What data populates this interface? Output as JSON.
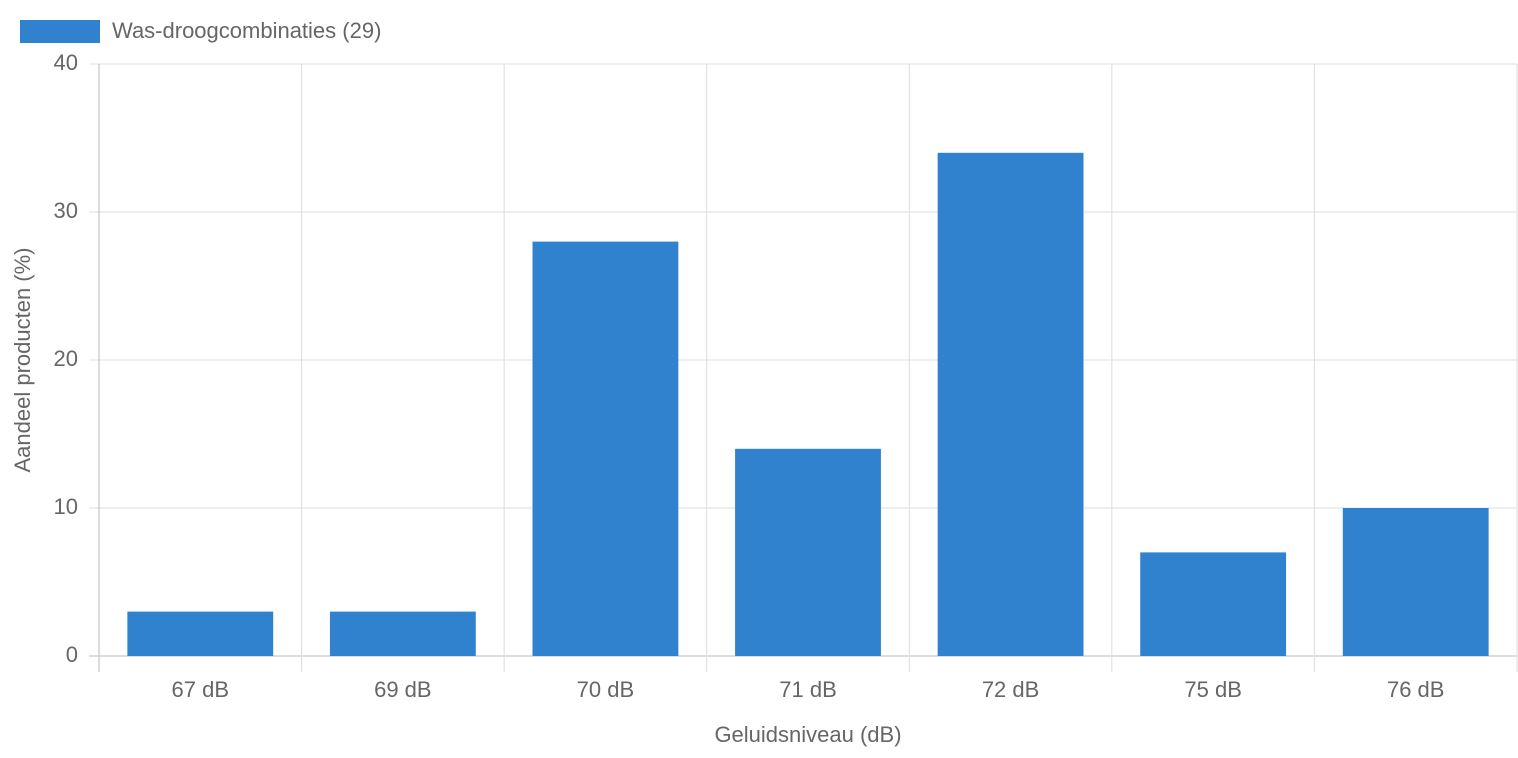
{
  "chart_data": {
    "type": "bar",
    "x_label": "Geluidsniveau (dB)",
    "y_label": "Aandeel producten (%)",
    "categories": [
      "67 dB",
      "69 dB",
      "70 dB",
      "71 dB",
      "72 dB",
      "75 dB",
      "76 dB"
    ],
    "series": [
      {
        "name": "Was-droogcombinaties (29)",
        "color": "#3182ce",
        "values": [
          3,
          3,
          28,
          14,
          34,
          7,
          10
        ]
      }
    ],
    "ylim": [
      0,
      40
    ],
    "yticks": [
      0,
      10,
      20,
      30,
      40
    ],
    "grid": true,
    "legend": "top-left"
  }
}
